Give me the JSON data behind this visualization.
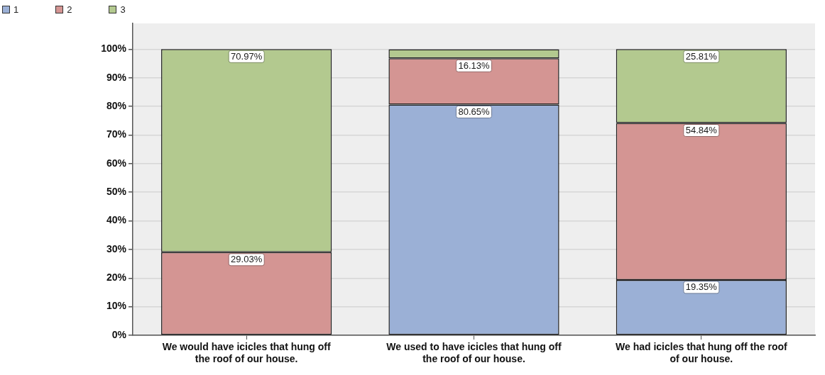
{
  "chart_data": {
    "type": "bar",
    "stacked": true,
    "categories": [
      "We would have icicles that hung off the roof of our house.",
      "We used to have icicles that hung off the roof of our house.",
      "We had icicles that hung off the roof of our house."
    ],
    "series": [
      {
        "name": "1",
        "color": "#9bb0d6",
        "values": [
          0,
          80.65,
          19.35
        ],
        "value_labels": [
          null,
          "80.65%",
          "19.35%"
        ]
      },
      {
        "name": "2",
        "color": "#d49593",
        "values": [
          29.03,
          16.13,
          54.84
        ],
        "value_labels": [
          "29.03%",
          "16.13%",
          "54.84%"
        ]
      },
      {
        "name": "3",
        "color": "#b3c98f",
        "values": [
          70.97,
          3.2,
          25.81
        ],
        "value_labels": [
          "70.97%",
          null,
          "25.81%"
        ]
      }
    ],
    "ylim": [
      0,
      109
    ],
    "yticks": [
      {
        "value": 0,
        "label": "0%"
      },
      {
        "value": 10,
        "label": "10%"
      },
      {
        "value": 20,
        "label": "20%"
      },
      {
        "value": 30,
        "label": "30%"
      },
      {
        "value": 40,
        "label": "40%"
      },
      {
        "value": 50,
        "label": "50%"
      },
      {
        "value": 60,
        "label": "60%"
      },
      {
        "value": 70,
        "label": "70%"
      },
      {
        "value": 80,
        "label": "80%"
      },
      {
        "value": 90,
        "label": "90%"
      },
      {
        "value": 100,
        "label": "100%"
      }
    ],
    "grid": "y",
    "legend": "top left"
  }
}
